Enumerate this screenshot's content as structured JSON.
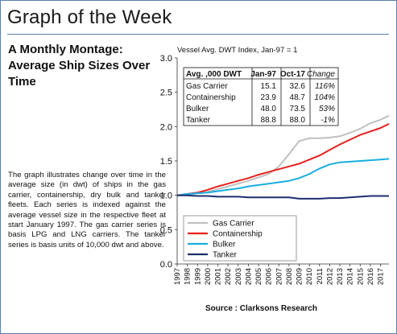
{
  "page": {
    "title": "Graph of the Week",
    "headline": "A Monthly Montage: Average Ship Sizes Over Time",
    "description": "The graph illustrates change over time in the average size (in dwt) of ships in the gas carrier, containership, dry bulk and tanker fleets. Each series is indexed against the average vessel size in the respective fleet at start January 1997. The gas carrier series is basis LPG and LNG carriers. The tanker series is basis units of 10,000 dwt and above.",
    "source": "Source : Clarksons Research"
  },
  "chart_data": {
    "type": "line",
    "title": "Vessel Avg. DWT Index, Jan-97 = 1",
    "xlabel": "",
    "ylabel": "",
    "x_ticks": [
      "1997",
      "1998",
      "1999",
      "2000",
      "2001",
      "2002",
      "2003",
      "2004",
      "2005",
      "2006",
      "2007",
      "2008",
      "2009",
      "2010",
      "2011",
      "2012",
      "2013",
      "2014",
      "2015",
      "2016",
      "2017"
    ],
    "y_ticks": [
      "0.0",
      "0.5",
      "1.0",
      "1.5",
      "2.0",
      "2.5",
      "3.0"
    ],
    "xlim": [
      1997,
      2017.83
    ],
    "ylim": [
      0,
      3
    ],
    "grid": false,
    "legend_position": "bottom-left",
    "series": [
      {
        "name": "Gas Carrier",
        "color": "#c0c0c0",
        "x": [
          1997,
          1998,
          1999,
          2000,
          2001,
          2002,
          2003,
          2004,
          2005,
          2006,
          2007,
          2008,
          2009,
          2010,
          2011,
          2012,
          2013,
          2014,
          2015,
          2016,
          2017,
          2017.83
        ],
        "y": [
          1.0,
          1.01,
          1.03,
          1.05,
          1.09,
          1.13,
          1.17,
          1.21,
          1.26,
          1.31,
          1.42,
          1.6,
          1.79,
          1.83,
          1.83,
          1.84,
          1.86,
          1.91,
          1.97,
          2.05,
          2.1,
          2.16
        ]
      },
      {
        "name": "Containership",
        "color": "#e8201c",
        "x": [
          1997,
          1998,
          1999,
          2000,
          2001,
          2002,
          2003,
          2004,
          2005,
          2006,
          2007,
          2008,
          2009,
          2010,
          2011,
          2012,
          2013,
          2014,
          2015,
          2016,
          2017,
          2017.83
        ],
        "y": [
          1.0,
          1.02,
          1.04,
          1.08,
          1.13,
          1.17,
          1.21,
          1.25,
          1.3,
          1.34,
          1.38,
          1.42,
          1.46,
          1.52,
          1.58,
          1.66,
          1.74,
          1.81,
          1.88,
          1.93,
          1.98,
          2.04
        ]
      },
      {
        "name": "Bulker",
        "color": "#18aee0",
        "x": [
          1997,
          1998,
          1999,
          2000,
          2001,
          2002,
          2003,
          2004,
          2005,
          2006,
          2007,
          2008,
          2009,
          2010,
          2011,
          2012,
          2013,
          2014,
          2015,
          2016,
          2017,
          2017.83
        ],
        "y": [
          1.0,
          1.02,
          1.03,
          1.04,
          1.06,
          1.08,
          1.1,
          1.13,
          1.15,
          1.17,
          1.19,
          1.21,
          1.25,
          1.31,
          1.39,
          1.45,
          1.48,
          1.49,
          1.5,
          1.51,
          1.52,
          1.53
        ]
      },
      {
        "name": "Tanker",
        "color": "#1c2f6e",
        "x": [
          1997,
          1998,
          1999,
          2000,
          2001,
          2002,
          2003,
          2004,
          2005,
          2006,
          2007,
          2008,
          2009,
          2010,
          2011,
          2012,
          2013,
          2014,
          2015,
          2016,
          2017,
          2017.83
        ],
        "y": [
          1.0,
          1.0,
          0.99,
          0.99,
          0.98,
          0.98,
          0.98,
          0.97,
          0.97,
          0.97,
          0.97,
          0.97,
          0.95,
          0.95,
          0.95,
          0.96,
          0.96,
          0.97,
          0.98,
          0.99,
          0.99,
          0.99
        ]
      }
    ],
    "table": {
      "headers": [
        "Avg. ,000 DWT",
        "Jan-97",
        "Oct-17",
        "Change"
      ],
      "rows": [
        [
          "Gas Carrier",
          "15.1",
          "32.6",
          "116%"
        ],
        [
          "Containership",
          "23.9",
          "48.7",
          "104%"
        ],
        [
          "Bulker",
          "48.0",
          "73.5",
          "53%"
        ],
        [
          "Tanker",
          "88.8",
          "88.0",
          "-1%"
        ]
      ]
    }
  }
}
